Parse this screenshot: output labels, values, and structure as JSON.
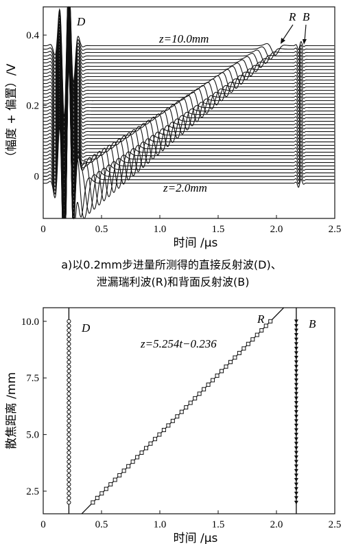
{
  "chart_data": [
    {
      "type": "line",
      "xlabel": "时间 /μs",
      "ylabel": "（幅度 + 偏置）/V",
      "xlim": [
        0,
        2.5
      ],
      "ylim": [
        -0.12,
        0.48
      ],
      "xticks": [
        "0",
        "0.5",
        "1.0",
        "1.5",
        "2.0",
        "2.5"
      ],
      "yticks": [
        "0",
        "0.2",
        "0.4"
      ],
      "x_tick_values": [
        0,
        0.5,
        1.0,
        1.5,
        2.0,
        2.5
      ],
      "y_tick_values": [
        0,
        0.2,
        0.4
      ],
      "annotations": {
        "top": "z=10.0mm",
        "bottom": "z=2.0mm",
        "D": "D",
        "R": "R",
        "B": "B"
      },
      "z_range_mm": [
        2.0,
        10.0
      ],
      "z_step_mm": 0.2,
      "baseline_top_V": 0.37,
      "baseline_bottom_V": -0.02,
      "caption_line1": "a)以0.2mm步进量所测得的直接反射波(D)、",
      "caption_line2": "泄漏瑞利波(R)和背面反射波(B)"
    },
    {
      "type": "scatter",
      "xlabel": "时间 /μs",
      "ylabel": "散焦距离 /mm",
      "xlim": [
        0,
        2.5
      ],
      "ylim": [
        1.5,
        10.6
      ],
      "xticks": [
        "0",
        "0.5",
        "1.0",
        "1.5",
        "2.0",
        "2.5"
      ],
      "yticks": [
        "2.5",
        "5.0",
        "7.5",
        "10.0"
      ],
      "x_tick_values": [
        0,
        0.5,
        1.0,
        1.5,
        2.0,
        2.5
      ],
      "y_tick_values": [
        2.5,
        5.0,
        7.5,
        10.0
      ],
      "fit_label": "z=5.254t−0.236",
      "fit": {
        "slope": 5.254,
        "intercept": -0.236
      },
      "series": [
        {
          "name": "D",
          "t": 0.22,
          "z_from": 2.0,
          "z_to": 10.0
        },
        {
          "name": "R",
          "z_from": 2.0,
          "z_to": 10.0
        },
        {
          "name": "B",
          "t": 2.17,
          "z_from": 2.0,
          "z_to": 10.0
        }
      ]
    }
  ]
}
